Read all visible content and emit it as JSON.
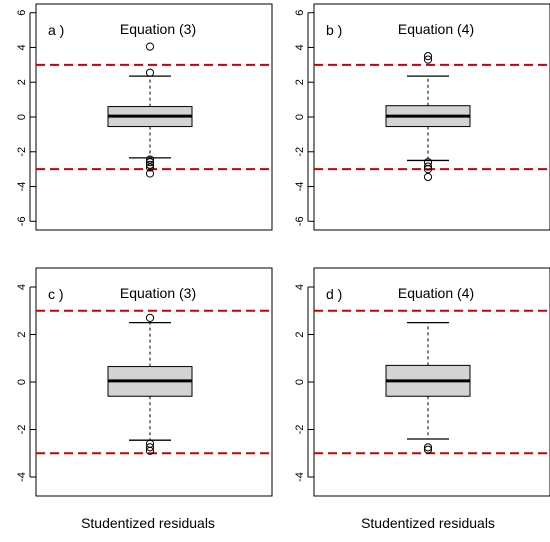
{
  "figure": {
    "caption_left": "Studentized residuals",
    "caption_right": "Studentized residuals"
  },
  "colors": {
    "box_fill": "#d3d3d3",
    "threshold_line": "#cc0000",
    "ink": "#000000"
  },
  "chart_data": [
    {
      "type": "box",
      "panel_label": "a )",
      "title": "Equation (3)",
      "ylim": [
        -6.5,
        6.5
      ],
      "yticks": [
        -6,
        -4,
        -2,
        0,
        2,
        4,
        6
      ],
      "thresholds": [
        3,
        -3
      ],
      "box": {
        "whisker_low": -2.35,
        "q1": -0.55,
        "median": 0.05,
        "q3": 0.6,
        "whisker_high": 2.35
      },
      "outliers": [
        4.05,
        2.55,
        -2.45,
        -2.6,
        -2.75,
        -2.9,
        -3.25
      ]
    },
    {
      "type": "box",
      "panel_label": "b )",
      "title": "Equation (4)",
      "ylim": [
        -6.5,
        6.5
      ],
      "yticks": [
        -6,
        -4,
        -2,
        0,
        2,
        4,
        6
      ],
      "thresholds": [
        3,
        -3
      ],
      "box": {
        "whisker_low": -2.5,
        "q1": -0.55,
        "median": 0.05,
        "q3": 0.65,
        "whisker_high": 2.35
      },
      "outliers": [
        3.5,
        3.3,
        -2.6,
        -2.85,
        -3.0,
        -3.45
      ]
    },
    {
      "type": "box",
      "panel_label": "c )",
      "title": "Equation (3)",
      "ylim": [
        -4.8,
        4.8
      ],
      "yticks": [
        -4,
        -2,
        0,
        2,
        4
      ],
      "thresholds": [
        3,
        -3
      ],
      "box": {
        "whisker_low": -2.45,
        "q1": -0.6,
        "median": 0.05,
        "q3": 0.65,
        "whisker_high": 2.5
      },
      "outliers": [
        2.7,
        -2.6,
        -2.75,
        -2.9
      ]
    },
    {
      "type": "box",
      "panel_label": "d )",
      "title": "Equation (4)",
      "ylim": [
        -4.8,
        4.8
      ],
      "yticks": [
        -4,
        -2,
        0,
        2,
        4
      ],
      "thresholds": [
        3,
        -3
      ],
      "box": {
        "whisker_low": -2.4,
        "q1": -0.6,
        "median": 0.05,
        "q3": 0.7,
        "whisker_high": 2.5
      },
      "outliers": [
        -2.75,
        -2.85
      ]
    }
  ]
}
